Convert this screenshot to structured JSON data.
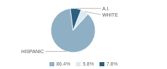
{
  "chart_data": {
    "type": "pie",
    "categories": [
      "HISPANIC",
      "WHITE",
      "A.I."
    ],
    "values": [
      86.4,
      5.8,
      7.8
    ],
    "value_labels": [
      "86.4%",
      "5.8%",
      "7.8%"
    ],
    "colors": [
      "#8fafc5",
      "#dce9f0",
      "#2d6080"
    ],
    "legend": "bottom"
  }
}
